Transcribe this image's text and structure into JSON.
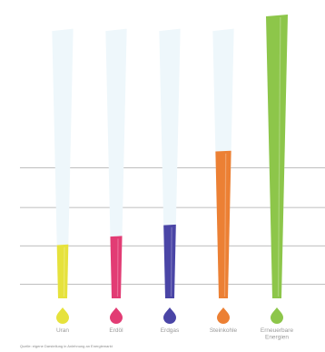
{
  "chart_data": {
    "type": "bar",
    "title": "",
    "xlabel": "",
    "ylabel": "",
    "ylim": [
      0,
      100
    ],
    "grid": true,
    "categories": [
      "Uran",
      "Erdöl",
      "Erdgas",
      "Steinkohle",
      "Erneuerbare Energien"
    ],
    "category_lines": [
      [
        "Uran"
      ],
      [
        "Erdöl"
      ],
      [
        "Erdgas"
      ],
      [
        "Steinkohle"
      ],
      [
        "Erneuerbare",
        "Energien"
      ]
    ],
    "values": [
      19,
      22,
      26,
      52,
      100
    ],
    "potential": [
      95,
      95,
      95,
      95,
      100
    ],
    "colors": [
      "#e6e23c",
      "#e23c74",
      "#4a45a6",
      "#ec8034",
      "#8dc64a"
    ],
    "background_bar_color": "#eef7fb",
    "gridline_color": "#a8a8a8"
  },
  "footnote": "Quelle: eigene Darstellung in Anlehnung an Energiemarkt"
}
